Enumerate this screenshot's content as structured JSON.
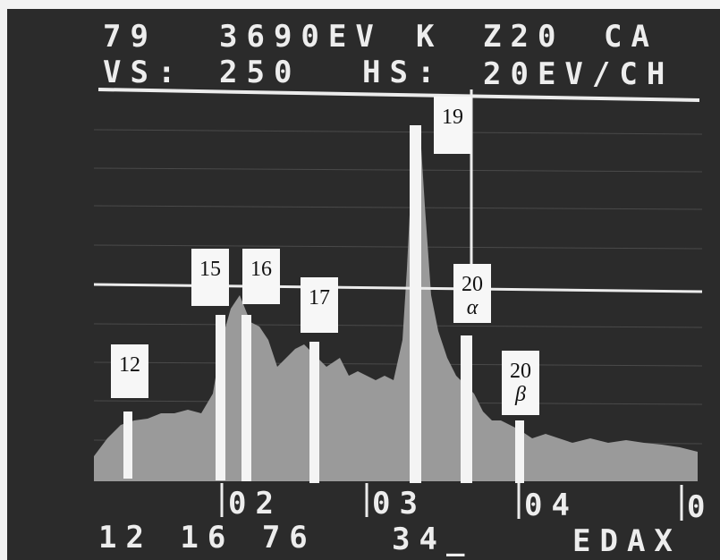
{
  "header": {
    "line1": [
      "79",
      "3690EV",
      "K",
      "Z20",
      "CA"
    ],
    "line2": [
      "VS:",
      "250",
      "HS:",
      "20EV/CH"
    ]
  },
  "markers": [
    {
      "label": "12"
    },
    {
      "label": "15"
    },
    {
      "label": "16"
    },
    {
      "label": "17"
    },
    {
      "label": "19"
    },
    {
      "label": "20",
      "symbol": "α"
    },
    {
      "label": "20",
      "symbol": "β"
    }
  ],
  "axis_labels": [
    "02",
    "03",
    "04",
    "0"
  ],
  "footer": {
    "left": "12 16 76",
    "middle": "34_",
    "right": "EDAX"
  }
}
